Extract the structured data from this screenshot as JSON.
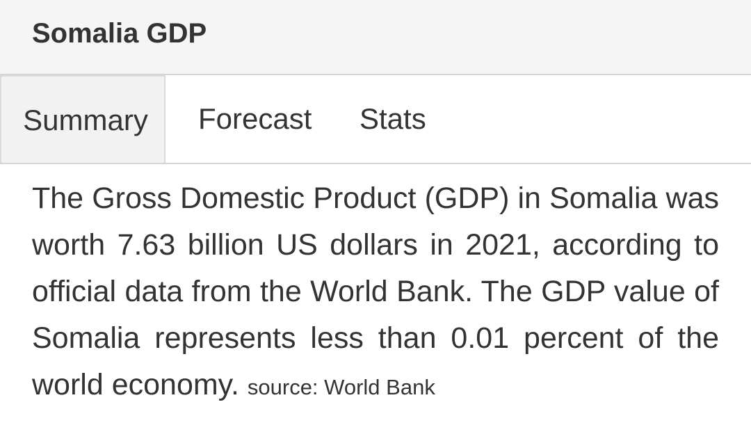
{
  "header": {
    "title": "Somalia GDP"
  },
  "tabs": [
    {
      "label": "Summary",
      "active": true
    },
    {
      "label": "Forecast",
      "active": false
    },
    {
      "label": "Stats",
      "active": false
    }
  ],
  "summary": {
    "text": "The Gross Domestic Product (GDP) in Somalia was worth 7.63 billion US dollars in 2021, according to official data from the World Bank. The GDP value of Somalia represents less than 0.01 percent of the world economy.",
    "source": "source: World Bank"
  }
}
